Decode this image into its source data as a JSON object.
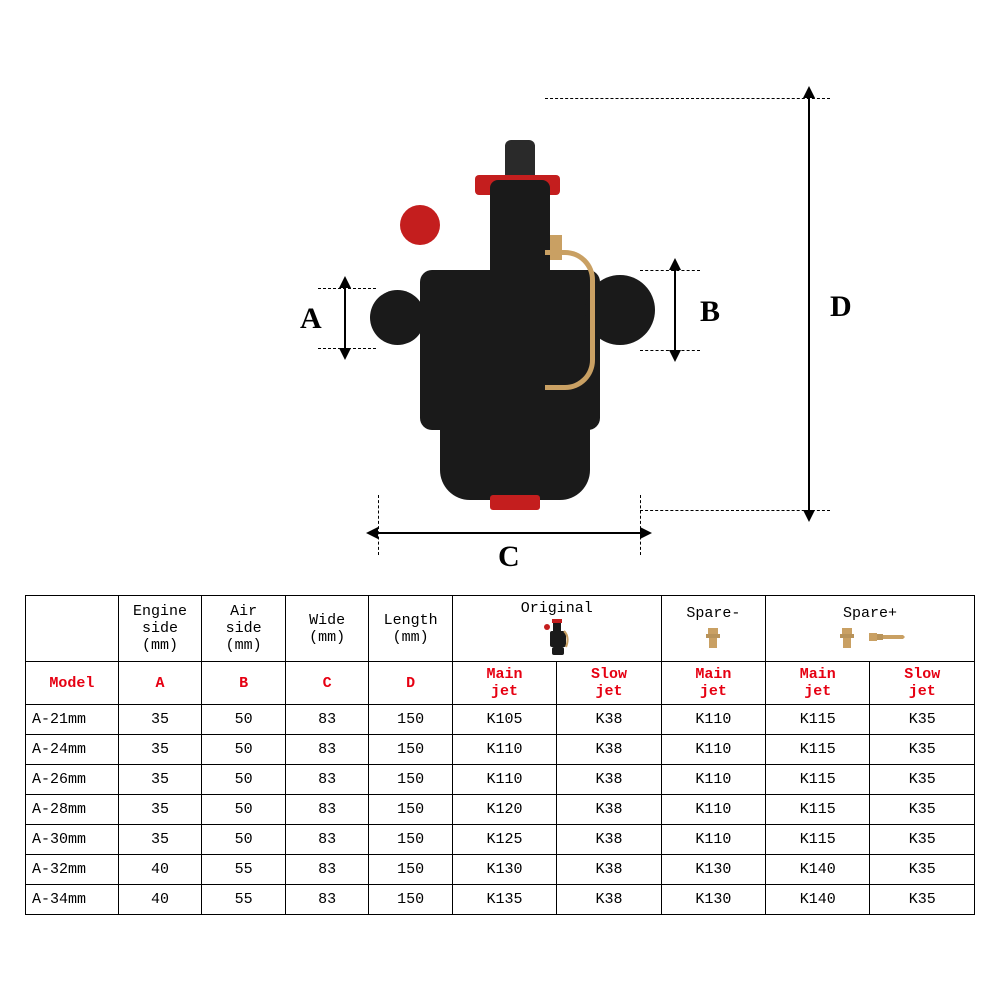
{
  "diagram": {
    "labels": {
      "A": "A",
      "B": "B",
      "C": "C",
      "D": "D"
    },
    "colors": {
      "body": "#1a1a1a",
      "accent_red": "#c41e1e",
      "brass": "#c9a063",
      "line": "#000000",
      "bg": "#ffffff"
    }
  },
  "table": {
    "header_groups": {
      "original": "Original",
      "spare_minus": "Spare-",
      "spare_plus": "Spare+"
    },
    "header_units": {
      "model": "Model",
      "engine_side": "Engine\nside\n(mm)",
      "air_side": "Air\nside\n(mm)",
      "wide": "Wide\n(mm)",
      "length": "Length\n(mm)"
    },
    "header_red": {
      "model": "Model",
      "A": "A",
      "B": "B",
      "C": "C",
      "D": "D",
      "main_jet": "Main\njet",
      "slow_jet": "Slow\njet"
    },
    "rows": [
      {
        "model": "A-21mm",
        "A": "35",
        "B": "50",
        "C": "83",
        "D": "150",
        "orig_main": "K105",
        "orig_slow": "K38",
        "sm_main": "K110",
        "sp_main": "K115",
        "sp_slow": "K35"
      },
      {
        "model": "A-24mm",
        "A": "35",
        "B": "50",
        "C": "83",
        "D": "150",
        "orig_main": "K110",
        "orig_slow": "K38",
        "sm_main": "K110",
        "sp_main": "K115",
        "sp_slow": "K35"
      },
      {
        "model": "A-26mm",
        "A": "35",
        "B": "50",
        "C": "83",
        "D": "150",
        "orig_main": "K110",
        "orig_slow": "K38",
        "sm_main": "K110",
        "sp_main": "K115",
        "sp_slow": "K35"
      },
      {
        "model": "A-28mm",
        "A": "35",
        "B": "50",
        "C": "83",
        "D": "150",
        "orig_main": "K120",
        "orig_slow": "K38",
        "sm_main": "K110",
        "sp_main": "K115",
        "sp_slow": "K35"
      },
      {
        "model": "A-30mm",
        "A": "35",
        "B": "50",
        "C": "83",
        "D": "150",
        "orig_main": "K125",
        "orig_slow": "K38",
        "sm_main": "K110",
        "sp_main": "K115",
        "sp_slow": "K35"
      },
      {
        "model": "A-32mm",
        "A": "40",
        "B": "55",
        "C": "83",
        "D": "150",
        "orig_main": "K130",
        "orig_slow": "K38",
        "sm_main": "K130",
        "sp_main": "K140",
        "sp_slow": "K35"
      },
      {
        "model": "A-34mm",
        "A": "40",
        "B": "55",
        "C": "83",
        "D": "150",
        "orig_main": "K135",
        "orig_slow": "K38",
        "sm_main": "K130",
        "sp_main": "K140",
        "sp_slow": "K35"
      }
    ],
    "colors": {
      "header_red": "#e60012",
      "border": "#000000",
      "text": "#000000"
    },
    "font_size_pt": 11
  }
}
